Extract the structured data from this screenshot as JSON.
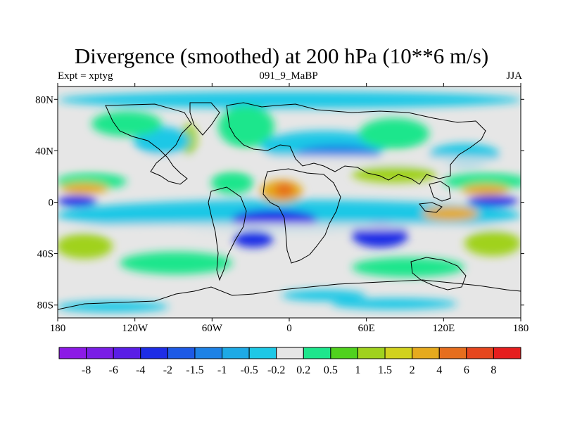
{
  "title": "Divergence (smoothed) at 200 hPa (10**6 m/s)",
  "left_label": "Expt = xptyg",
  "center_label": "091_9_MaBP",
  "right_label": "JJA",
  "map": {
    "lon_range": [
      -180,
      180
    ],
    "lat_range": [
      -90,
      90
    ],
    "x_ticks": [
      {
        "value": -180,
        "label": "180"
      },
      {
        "value": -120,
        "label": "120W"
      },
      {
        "value": -60,
        "label": "60W"
      },
      {
        "value": 0,
        "label": "0"
      },
      {
        "value": 60,
        "label": "60E"
      },
      {
        "value": 120,
        "label": "120E"
      },
      {
        "value": 180,
        "label": "180"
      }
    ],
    "y_ticks": [
      {
        "value": 80,
        "label": "80N"
      },
      {
        "value": 40,
        "label": "40N"
      },
      {
        "value": 0,
        "label": "0"
      },
      {
        "value": -40,
        "label": "40S"
      },
      {
        "value": -80,
        "label": "80S"
      }
    ]
  },
  "colorbar": {
    "colors": [
      "#8c1ae6",
      "#7a1ee6",
      "#5a1ee6",
      "#1e2de6",
      "#1e5ae6",
      "#1e82e6",
      "#1eaae6",
      "#1ec8e6",
      "#e6e6e6",
      "#1ee68c",
      "#50d21e",
      "#a0d21e",
      "#d2d21e",
      "#e6aa1e",
      "#e66e1e",
      "#e6461e",
      "#e61e1e"
    ],
    "labels": [
      "-8",
      "-6",
      "-4",
      "-2",
      "-1.5",
      "-1",
      "-0.5",
      "-0.2",
      "0.2",
      "0.5",
      "1",
      "1.5",
      "2",
      "4",
      "6",
      "8"
    ]
  },
  "legend_colors": {
    "strong_negative": "#1e2de6",
    "negative": "#1e82e6",
    "weak_negative": "#1ec8e6",
    "neutral": "#e6e6e6",
    "weak_positive": "#1ee68c",
    "positive": "#a0d21e",
    "strong_positive": "#e6aa1e",
    "extreme_positive": "#e66e1e"
  }
}
